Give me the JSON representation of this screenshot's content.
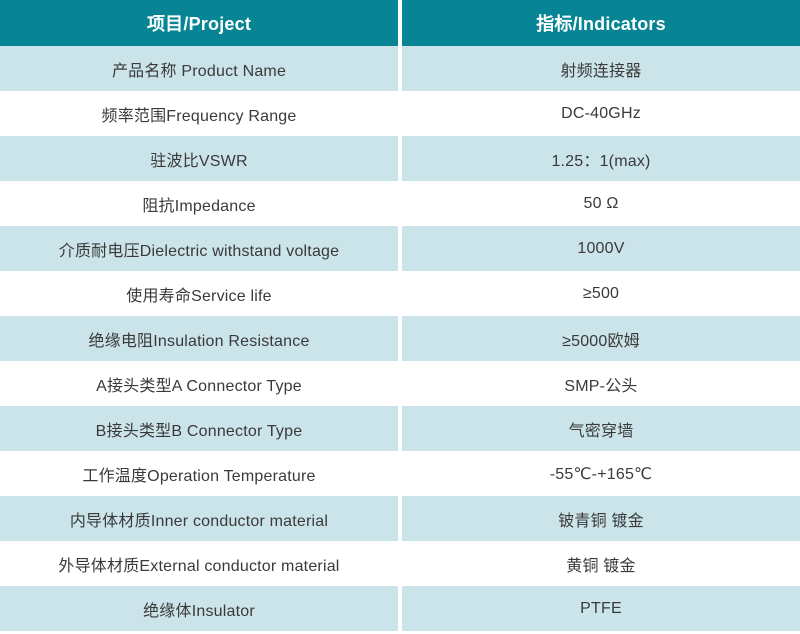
{
  "table": {
    "colors": {
      "header_bg": "#078594",
      "header_text": "#ffffff",
      "row_alt_bg": "#cbe4ea",
      "row_bg": "#ffffff",
      "body_text": "#3a3a3a"
    },
    "header": {
      "project": "项目/Project",
      "indicator": "指标/Indicators"
    },
    "rows": [
      {
        "project": "产品名称 Product Name",
        "indicator": "射频连接器"
      },
      {
        "project": "频率范围Frequency Range",
        "indicator": "DC-40GHz"
      },
      {
        "project": "驻波比VSWR",
        "indicator": "1.25：1(max)"
      },
      {
        "project": "阻抗Impedance",
        "indicator": "50 Ω"
      },
      {
        "project": "介质耐电压Dielectric withstand voltage",
        "indicator": "1000V"
      },
      {
        "project": "使用寿命Service life",
        "indicator": "≥500"
      },
      {
        "project": "绝缘电阻Insulation Resistance",
        "indicator": "≥5000欧姆"
      },
      {
        "project": "A接头类型A Connector Type",
        "indicator": "SMP-公头"
      },
      {
        "project": "B接头类型B Connector Type",
        "indicator": "气密穿墙"
      },
      {
        "project": "工作温度Operation Temperature",
        "indicator": "-55℃-+165℃"
      },
      {
        "project": "内导体材质Inner conductor material",
        "indicator": "铍青铜 镀金"
      },
      {
        "project": "外导体材质External conductor material",
        "indicator": "黄铜 镀金"
      },
      {
        "project": "绝缘体Insulator",
        "indicator": "PTFE"
      }
    ]
  }
}
